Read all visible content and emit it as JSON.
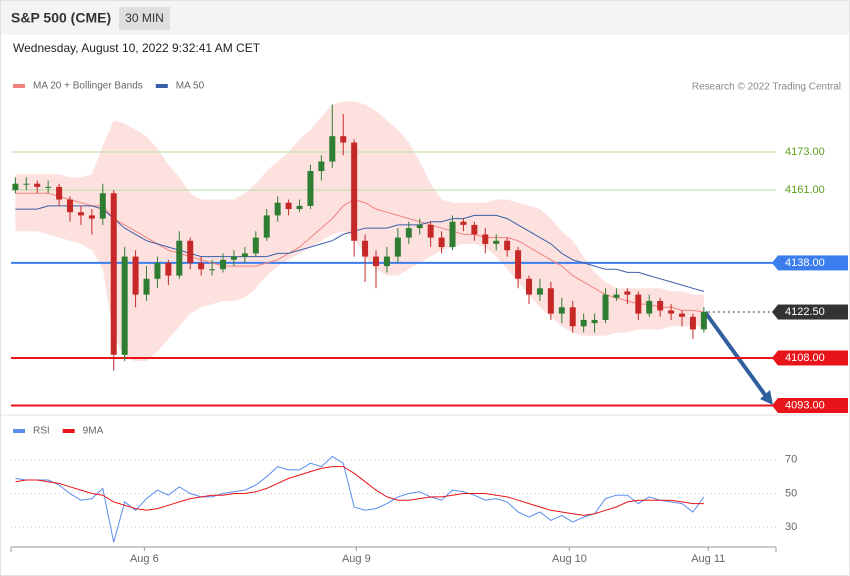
{
  "header": {
    "title": "S&P 500 (CME)",
    "interval": "30 MIN",
    "timestamp": "Wednesday, August 10, 2022 9:32:41 AM CET"
  },
  "chart_data": [
    {
      "type": "candlestick",
      "source": "Research © 2022 Trading Central",
      "up_color": "#2e7d32",
      "down_color": "#c62828",
      "band_color": "#fde1df",
      "xlim": [
        -0.4,
        69.6
      ],
      "ylim": [
        4090,
        4191
      ],
      "open": [
        4161,
        4163,
        4163,
        4162,
        4162,
        4158,
        4154,
        4153,
        4152,
        4160,
        4109,
        4140,
        4128,
        4133,
        4138,
        4134,
        4145,
        4138,
        4136,
        4136,
        4139,
        4140,
        4141,
        4146,
        4153,
        4157,
        4155,
        4156,
        4167,
        4170,
        4178,
        4176,
        4145,
        4140,
        4137,
        4140,
        4146,
        4149,
        4150,
        4146,
        4143,
        4151,
        4150,
        4147,
        4144,
        4145,
        4142,
        4133,
        4128,
        4130,
        4122,
        4124,
        4118,
        4119,
        4120,
        4127,
        4129,
        4128,
        4122,
        4126,
        4123,
        4122,
        4121,
        4117
      ],
      "high": [
        4165,
        4165,
        4164,
        4164,
        4163,
        4159,
        4156,
        4155,
        4163,
        4161,
        4143,
        4142,
        4137,
        4140,
        4139,
        4148,
        4146,
        4140,
        4139,
        4141,
        4142,
        4143,
        4148,
        4155,
        4159,
        4158,
        4158,
        4169,
        4172,
        4188,
        4185,
        4177,
        4147,
        4142,
        4143,
        4149,
        4151,
        4152,
        4151,
        4148,
        4153,
        4152,
        4151,
        4149,
        4147,
        4146,
        4143,
        4134,
        4133,
        4132,
        4127,
        4126,
        4122,
        4122,
        4130,
        4130,
        4130,
        4129,
        4128,
        4127,
        4125,
        4123,
        4122,
        4124
      ],
      "low": [
        4160,
        4161,
        4160,
        4160,
        4156,
        4151,
        4150,
        4147,
        4150,
        4104,
        4107,
        4124,
        4126,
        4130,
        4131,
        4133,
        4136,
        4134,
        4134,
        4135,
        4137,
        4138,
        4140,
        4145,
        4151,
        4153,
        4154,
        4155,
        4164,
        4168,
        4172,
        4140,
        4132,
        4130,
        4135,
        4138,
        4144,
        4147,
        4143,
        4141,
        4142,
        4148,
        4145,
        4141,
        4142,
        4140,
        4130,
        4125,
        4126,
        4120,
        4119,
        4116,
        4116,
        4116,
        4119,
        4126,
        4125,
        4120,
        4121,
        4121,
        4120,
        4118,
        4114,
        4116
      ],
      "close": [
        4163,
        4163,
        4162,
        4162,
        4158,
        4154,
        4153,
        4152,
        4160,
        4109,
        4140,
        4128,
        4133,
        4138,
        4134,
        4145,
        4138,
        4136,
        4136,
        4139,
        4140,
        4141,
        4146,
        4153,
        4157,
        4155,
        4156,
        4167,
        4170,
        4178,
        4176,
        4145,
        4140,
        4137,
        4140,
        4146,
        4149,
        4150,
        4146,
        4143,
        4151,
        4150,
        4147,
        4144,
        4145,
        4142,
        4133,
        4128,
        4130,
        4122,
        4124,
        4118,
        4120,
        4120,
        4128,
        4128,
        4128,
        4122,
        4126,
        4123,
        4122,
        4121,
        4117,
        4122.5
      ],
      "series": [
        {
          "name": "MA 20 + Bollinger Bands",
          "color": "#f4837d",
          "values": [
            4160,
            4160,
            4160,
            4160,
            4159,
            4158,
            4157,
            4156,
            4156,
            4152,
            4150,
            4148,
            4146,
            4144,
            4142,
            4141,
            4140,
            4139,
            4138,
            4137,
            4137,
            4137,
            4137,
            4138,
            4139,
            4141,
            4143,
            4146,
            4149,
            4152,
            4156,
            4158,
            4157,
            4155,
            4154,
            4153,
            4152,
            4151,
            4150,
            4149,
            4148,
            4147,
            4147,
            4146,
            4146,
            4146,
            4145,
            4143,
            4141,
            4139,
            4137,
            4134,
            4132,
            4130,
            4128,
            4127,
            4126,
            4125,
            4125,
            4124,
            4124,
            4123,
            4123,
            4122.5
          ],
          "upper": [
            4166,
            4166,
            4166,
            4166,
            4166,
            4165,
            4165,
            4166,
            4175,
            4183,
            4182,
            4180,
            4178,
            4174,
            4169,
            4165,
            4160,
            4158,
            4158,
            4158,
            4158,
            4160,
            4163,
            4167,
            4170,
            4173,
            4177,
            4180,
            4184,
            4188,
            4189,
            4189,
            4188,
            4186,
            4183,
            4180,
            4176,
            4170,
            4163,
            4158,
            4157,
            4157,
            4157,
            4157,
            4158,
            4158,
            4157,
            4156,
            4155,
            4152,
            4148,
            4145,
            4140,
            4135,
            4132,
            4130,
            4130,
            4130,
            4130,
            4130,
            4129,
            4129,
            4128,
            4128
          ],
          "lower": [
            4148,
            4148,
            4148,
            4147,
            4146,
            4145,
            4144,
            4142,
            4136,
            4115,
            4108,
            4107,
            4107,
            4110,
            4114,
            4118,
            4122,
            4124,
            4125,
            4126,
            4126,
            4127,
            4130,
            4134,
            4137,
            4139,
            4141,
            4143,
            4145,
            4147,
            4148,
            4146,
            4140,
            4136,
            4134,
            4134,
            4136,
            4138,
            4140,
            4142,
            4143,
            4144,
            4144,
            4143,
            4140,
            4136,
            4132,
            4128,
            4124,
            4121,
            4118,
            4116,
            4115,
            4115,
            4115,
            4116,
            4116,
            4117,
            4117,
            4117,
            4118,
            4118,
            4118,
            4118
          ]
        },
        {
          "name": "MA 50",
          "color": "#3a5ea8",
          "values": [
            4155,
            4155,
            4155,
            4156,
            4156,
            4156,
            4156,
            4156,
            4155,
            4152,
            4149,
            4147,
            4145,
            4144,
            4143,
            4142,
            4141,
            4140,
            4140,
            4140,
            4140,
            4140,
            4140,
            4140,
            4141,
            4141,
            4142,
            4143,
            4144,
            4145,
            4147,
            4148,
            4149,
            4149,
            4149,
            4150,
            4150,
            4150,
            4151,
            4151,
            4152,
            4152,
            4153,
            4153,
            4153,
            4152,
            4150,
            4148,
            4146,
            4144,
            4141,
            4139,
            4138,
            4137,
            4136,
            4136,
            4135,
            4135,
            4134,
            4133,
            4132,
            4131,
            4130,
            4129
          ]
        }
      ],
      "levels": [
        {
          "value": 4173,
          "label": "4173.00",
          "color": "#b9dca0",
          "text_color": "#5a9e1a",
          "box": false,
          "dotted": false
        },
        {
          "value": 4161,
          "label": "4161.00",
          "color": "#b9dca0",
          "text_color": "#5a9e1a",
          "box": false,
          "dotted": false
        },
        {
          "value": 4138,
          "label": "4138.00",
          "color": "#3b7ded",
          "text_color": "#ffffff",
          "box": true,
          "dotted": false
        },
        {
          "value": 4122.5,
          "label": "4122.50",
          "color": "#333333",
          "text_color": "#ffffff",
          "box": true,
          "dotted": true
        },
        {
          "value": 4108,
          "label": "4108.00",
          "color": "#e8141a",
          "text_color": "#ffffff",
          "box": true,
          "dotted": false
        },
        {
          "value": 4093,
          "label": "4093.00",
          "color": "#e8141a",
          "text_color": "#ffffff",
          "box": true,
          "dotted": false
        }
      ]
    },
    {
      "type": "line",
      "xlim": [
        -0.4,
        69.6
      ],
      "ylim": [
        20,
        80
      ],
      "yticks": [
        30,
        50,
        70
      ],
      "xticks": [
        {
          "value": 11.8,
          "label": "Aug 6"
        },
        {
          "value": 31.2,
          "label": "Aug 9"
        },
        {
          "value": 50.7,
          "label": "Aug 10"
        },
        {
          "value": 63.4,
          "label": "Aug 11"
        }
      ],
      "series": [
        {
          "name": "RSI",
          "color": "#5b8def",
          "values": [
            59,
            58,
            58,
            58,
            55,
            50,
            46,
            47,
            53,
            21,
            45,
            40,
            47,
            52,
            49,
            54,
            50,
            48,
            48,
            50,
            51,
            52,
            55,
            60,
            66,
            64,
            64,
            68,
            66,
            72,
            68,
            42,
            40,
            41,
            44,
            48,
            50,
            51,
            48,
            46,
            52,
            51,
            49,
            46,
            47,
            45,
            39,
            36,
            39,
            34,
            37,
            33,
            36,
            38,
            47,
            49,
            49,
            44,
            48,
            46,
            45,
            44,
            39,
            48
          ]
        },
        {
          "name": "9MA",
          "color": "#e8141a",
          "values": [
            57,
            58,
            58,
            57,
            56,
            54,
            52,
            50,
            49,
            45,
            43,
            41,
            40,
            41,
            43,
            45,
            47,
            48,
            49,
            49,
            50,
            50,
            51,
            53,
            56,
            59,
            61,
            63,
            65,
            66,
            66,
            62,
            57,
            52,
            48,
            46,
            46,
            47,
            48,
            48,
            49,
            50,
            50,
            50,
            49,
            48,
            46,
            44,
            42,
            40,
            39,
            38,
            37,
            38,
            40,
            42,
            45,
            46,
            46,
            46,
            46,
            45,
            44,
            44
          ]
        }
      ]
    }
  ]
}
